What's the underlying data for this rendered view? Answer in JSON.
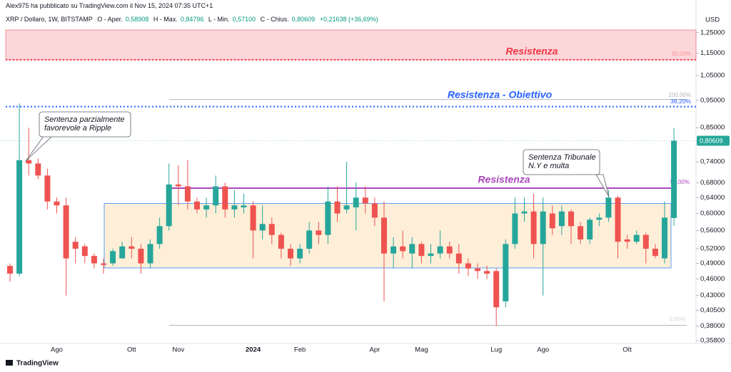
{
  "chart_data": {
    "type": "candlestick",
    "attribution": "Alex975 ha pubblicato su TradingView.com il Nov 15, 2024 07:35 UTC+1",
    "symbol": "XRP / Dollaro, 1W, BITSTAMP",
    "ohlc_header": [
      {
        "name": "O - Aper.",
        "text": "0,58908"
      },
      {
        "name": "H - Max.",
        "text": "0,84796"
      },
      {
        "name": "L - Min.",
        "text": "0,57100"
      },
      {
        "name": "C - Chius.",
        "text": "0,80609"
      }
    ],
    "change": "+0,21638 (+36,69%)",
    "y_unit": "USD",
    "brand": "TradingView",
    "log_scale": true,
    "grid": false,
    "up_color": "#26a69a",
    "down_color": "#ef5350",
    "categories": [
      null,
      null,
      null,
      null,
      null,
      "Ago",
      null,
      null,
      null,
      null,
      null,
      null,
      null,
      "Ott",
      null,
      null,
      null,
      null,
      "Nov",
      null,
      null,
      null,
      null,
      null,
      null,
      null,
      "2024",
      null,
      null,
      null,
      null,
      "Feb",
      null,
      null,
      null,
      null,
      null,
      null,
      null,
      "Apr",
      null,
      null,
      null,
      null,
      "Mag",
      null,
      null,
      null,
      null,
      null,
      null,
      null,
      "Lug",
      null,
      null,
      null,
      null,
      "Ago",
      null,
      null,
      null,
      null,
      null,
      null,
      null,
      null,
      "Ott",
      null,
      null,
      null,
      null,
      null
    ],
    "open": [
      0.485,
      0.47,
      0.745,
      0.735,
      0.7,
      0.63,
      0.62,
      0.535,
      0.525,
      0.505,
      0.49,
      0.49,
      0.5,
      0.525,
      0.52,
      0.49,
      0.53,
      0.57,
      0.675,
      0.67,
      0.63,
      0.61,
      0.62,
      0.67,
      0.61,
      0.615,
      0.62,
      0.56,
      0.575,
      0.55,
      0.52,
      0.5,
      0.52,
      0.56,
      0.55,
      0.63,
      0.61,
      0.615,
      0.64,
      0.625,
      0.59,
      0.51,
      0.525,
      0.51,
      0.53,
      0.505,
      0.51,
      0.525,
      0.51,
      0.49,
      0.48,
      0.475,
      0.475,
      0.42,
      0.53,
      0.6,
      0.605,
      0.53,
      0.6,
      0.57,
      0.605,
      0.57,
      0.54,
      0.585,
      0.59,
      0.64,
      0.54,
      0.535,
      0.55,
      0.52,
      0.5,
      0.58908
    ],
    "high": [
      0.49,
      0.938,
      0.85,
      0.75,
      0.72,
      0.64,
      0.64,
      0.545,
      0.53,
      0.51,
      0.5,
      0.52,
      0.535,
      0.545,
      0.53,
      0.54,
      0.59,
      0.735,
      0.73,
      0.745,
      0.64,
      0.64,
      0.7,
      0.68,
      0.66,
      0.65,
      0.63,
      0.62,
      0.59,
      0.555,
      0.53,
      0.53,
      0.58,
      0.58,
      0.67,
      0.67,
      0.74,
      0.68,
      0.67,
      0.64,
      0.63,
      0.545,
      0.56,
      0.545,
      0.535,
      0.53,
      0.56,
      0.535,
      0.53,
      0.5,
      0.49,
      0.485,
      0.48,
      0.54,
      0.64,
      0.64,
      0.65,
      0.64,
      0.62,
      0.62,
      0.61,
      0.58,
      0.59,
      0.6,
      0.66,
      0.645,
      0.55,
      0.56,
      0.555,
      0.53,
      0.63,
      0.84796
    ],
    "low": [
      0.455,
      0.465,
      0.7,
      0.69,
      0.61,
      0.6,
      0.43,
      0.49,
      0.49,
      0.48,
      0.47,
      0.485,
      0.5,
      0.5,
      0.47,
      0.48,
      0.52,
      0.56,
      0.62,
      0.61,
      0.6,
      0.59,
      0.6,
      0.59,
      0.59,
      0.6,
      0.5,
      0.54,
      0.53,
      0.5,
      0.485,
      0.49,
      0.51,
      0.53,
      0.53,
      0.58,
      0.6,
      0.56,
      0.6,
      0.57,
      0.42,
      0.48,
      0.5,
      0.48,
      0.49,
      0.49,
      0.5,
      0.5,
      0.47,
      0.465,
      0.46,
      0.46,
      0.38,
      0.41,
      0.52,
      0.58,
      0.5,
      0.43,
      0.55,
      0.55,
      0.53,
      0.53,
      0.53,
      0.57,
      0.58,
      0.5,
      0.52,
      0.53,
      0.49,
      0.5,
      0.49,
      0.571
    ],
    "close": [
      0.47,
      0.745,
      0.735,
      0.7,
      0.63,
      0.62,
      0.5,
      0.52,
      0.505,
      0.49,
      0.487,
      0.515,
      0.525,
      0.52,
      0.49,
      0.53,
      0.57,
      0.675,
      0.67,
      0.63,
      0.61,
      0.62,
      0.67,
      0.61,
      0.62,
      0.62,
      0.56,
      0.575,
      0.55,
      0.52,
      0.5,
      0.52,
      0.56,
      0.55,
      0.63,
      0.6,
      0.62,
      0.64,
      0.625,
      0.59,
      0.51,
      0.525,
      0.515,
      0.53,
      0.505,
      0.51,
      0.525,
      0.51,
      0.49,
      0.48,
      0.475,
      0.47,
      0.41,
      0.53,
      0.6,
      0.605,
      0.53,
      0.605,
      0.565,
      0.605,
      0.57,
      0.54,
      0.585,
      0.59,
      0.64,
      0.535,
      0.535,
      0.55,
      0.52,
      0.505,
      0.59,
      0.80609
    ],
    "last_price": {
      "value": 0.80609,
      "label": "0,80609"
    },
    "ylim": [
      0.356,
      1.355
    ],
    "yticks": [
      {
        "value": 1.25,
        "label": "1,25000"
      },
      {
        "value": 1.15,
        "label": "1,15000"
      },
      {
        "value": 1.05,
        "label": "1,05000"
      },
      {
        "value": 0.95,
        "label": "0,95000"
      },
      {
        "value": 0.85,
        "label": "0,85000"
      },
      {
        "value": 0.74,
        "label": "0,74000"
      },
      {
        "value": 0.68,
        "label": "0,68000"
      },
      {
        "value": 0.64,
        "label": "0,64000"
      },
      {
        "value": 0.6,
        "label": "0,60000"
      },
      {
        "value": 0.56,
        "label": "0,56000"
      },
      {
        "value": 0.52,
        "label": "0,52000"
      },
      {
        "value": 0.49,
        "label": "0,49000"
      },
      {
        "value": 0.46,
        "label": "0,46000"
      },
      {
        "value": 0.43,
        "label": "0,43000"
      },
      {
        "value": 0.405,
        "label": "0,40500"
      },
      {
        "value": 0.38,
        "label": "0,38000"
      },
      {
        "value": 0.358,
        "label": "0,35800"
      }
    ],
    "resistance_zone": {
      "label": "Resistenza",
      "top": 1.264,
      "bottom": 1.12,
      "fib_label": "50,00%",
      "color": "#f23645"
    },
    "target_line": {
      "label": "Resistenza - Obiettivo",
      "value": 0.926,
      "fib_label": "38,20%",
      "color": "#2962ff"
    },
    "resistance_line": {
      "label": "Resistenza",
      "value": 0.665,
      "fib_label": "50,00%",
      "color": "#ab47bc"
    },
    "fib_top": {
      "value": 0.953,
      "label": "100,00%"
    },
    "fib_bottom": {
      "value": 0.381,
      "label": "0,00%"
    },
    "range_box": {
      "top": 0.625,
      "bottom": 0.481
    },
    "callouts": [
      {
        "lines": [
          "Sentenza parzialmente",
          "favorevole a Ripple"
        ]
      },
      {
        "lines": [
          "Sentenza Tribunale",
          "N.Y e multa"
        ]
      }
    ]
  }
}
